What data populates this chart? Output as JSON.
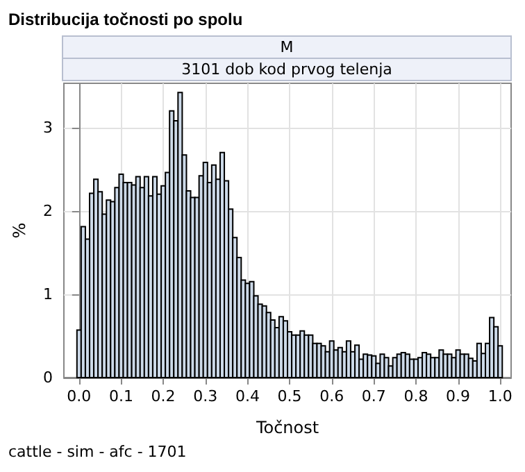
{
  "chart_data": {
    "type": "histogram",
    "title": "Distribucija točnosti po spolu",
    "subtitle": "M",
    "annotations": [
      "3101 dob kod prvog telenja",
      "cattle - sim - afc - 1701"
    ],
    "xlabel": "Točnost",
    "ylabel": "%",
    "color": "#ccd9e8",
    "grid": true,
    "bins": [
      -0.005,
      0.005,
      0.015,
      0.025,
      0.035,
      0.045,
      0.055,
      0.065,
      0.075,
      0.085,
      0.095,
      0.105,
      0.115,
      0.125,
      0.135,
      0.145,
      0.155,
      0.165,
      0.175,
      0.185,
      0.195,
      0.205,
      0.215,
      0.225,
      0.235,
      0.245,
      0.255,
      0.265,
      0.275,
      0.285,
      0.295,
      0.305,
      0.315,
      0.325,
      0.335,
      0.345,
      0.355,
      0.365,
      0.375,
      0.385,
      0.395,
      0.405,
      0.415,
      0.425,
      0.435,
      0.445,
      0.455,
      0.465,
      0.475,
      0.485,
      0.495,
      0.505,
      0.515,
      0.525,
      0.535,
      0.545,
      0.555,
      0.565,
      0.575,
      0.585,
      0.595,
      0.605,
      0.615,
      0.625,
      0.635,
      0.645,
      0.655,
      0.665,
      0.675,
      0.685,
      0.695,
      0.705,
      0.715,
      0.725,
      0.735,
      0.745,
      0.755,
      0.765,
      0.775,
      0.785,
      0.795,
      0.805,
      0.815,
      0.825,
      0.835,
      0.845,
      0.855,
      0.865,
      0.875,
      0.885,
      0.895,
      0.905,
      0.915,
      0.925,
      0.935,
      0.945,
      0.955,
      0.965,
      0.975,
      0.985,
      0.995,
      1.005
    ],
    "values": [
      0.57,
      1.81,
      1.66,
      2.21,
      2.38,
      2.23,
      1.96,
      2.13,
      2.11,
      2.28,
      2.44,
      2.34,
      2.34,
      2.31,
      2.41,
      2.28,
      2.41,
      2.18,
      2.41,
      2.2,
      2.3,
      2.46,
      3.2,
      3.08,
      3.42,
      2.67,
      2.24,
      2.16,
      2.16,
      2.42,
      2.58,
      2.34,
      2.55,
      2.38,
      2.7,
      2.36,
      2.02,
      1.68,
      1.44,
      1.17,
      1.13,
      1.15,
      0.98,
      0.88,
      0.86,
      0.78,
      0.69,
      0.6,
      0.73,
      0.68,
      0.55,
      0.51,
      0.51,
      0.56,
      0.51,
      0.51,
      0.41,
      0.41,
      0.38,
      0.31,
      0.44,
      0.33,
      0.36,
      0.31,
      0.44,
      0.31,
      0.39,
      0.22,
      0.28,
      0.27,
      0.26,
      0.17,
      0.28,
      0.24,
      0.14,
      0.24,
      0.28,
      0.3,
      0.28,
      0.22,
      0.22,
      0.24,
      0.3,
      0.28,
      0.24,
      0.24,
      0.33,
      0.28,
      0.28,
      0.24,
      0.33,
      0.28,
      0.28,
      0.23,
      0.2,
      0.41,
      0.29,
      0.41,
      0.72,
      0.61,
      0.38
    ],
    "xlim": [
      -0.036,
      1.026
    ],
    "xticks": [
      {
        "value": 0,
        "label": "0.0"
      },
      {
        "value": 0.1,
        "label": "0.1"
      },
      {
        "value": 0.2,
        "label": "0.2"
      },
      {
        "value": 0.3,
        "label": "0.3"
      },
      {
        "value": 0.4,
        "label": "0.4"
      },
      {
        "value": 0.5,
        "label": "0.5"
      },
      {
        "value": 0.6,
        "label": "0.6"
      },
      {
        "value": 0.7,
        "label": "0.7"
      },
      {
        "value": 0.8,
        "label": "0.8"
      },
      {
        "value": 0.9,
        "label": "0.9"
      },
      {
        "value": 1,
        "label": "1.0"
      }
    ],
    "ylim": [
      0,
      3.53
    ],
    "yticks": [
      0,
      1,
      2,
      3
    ]
  }
}
